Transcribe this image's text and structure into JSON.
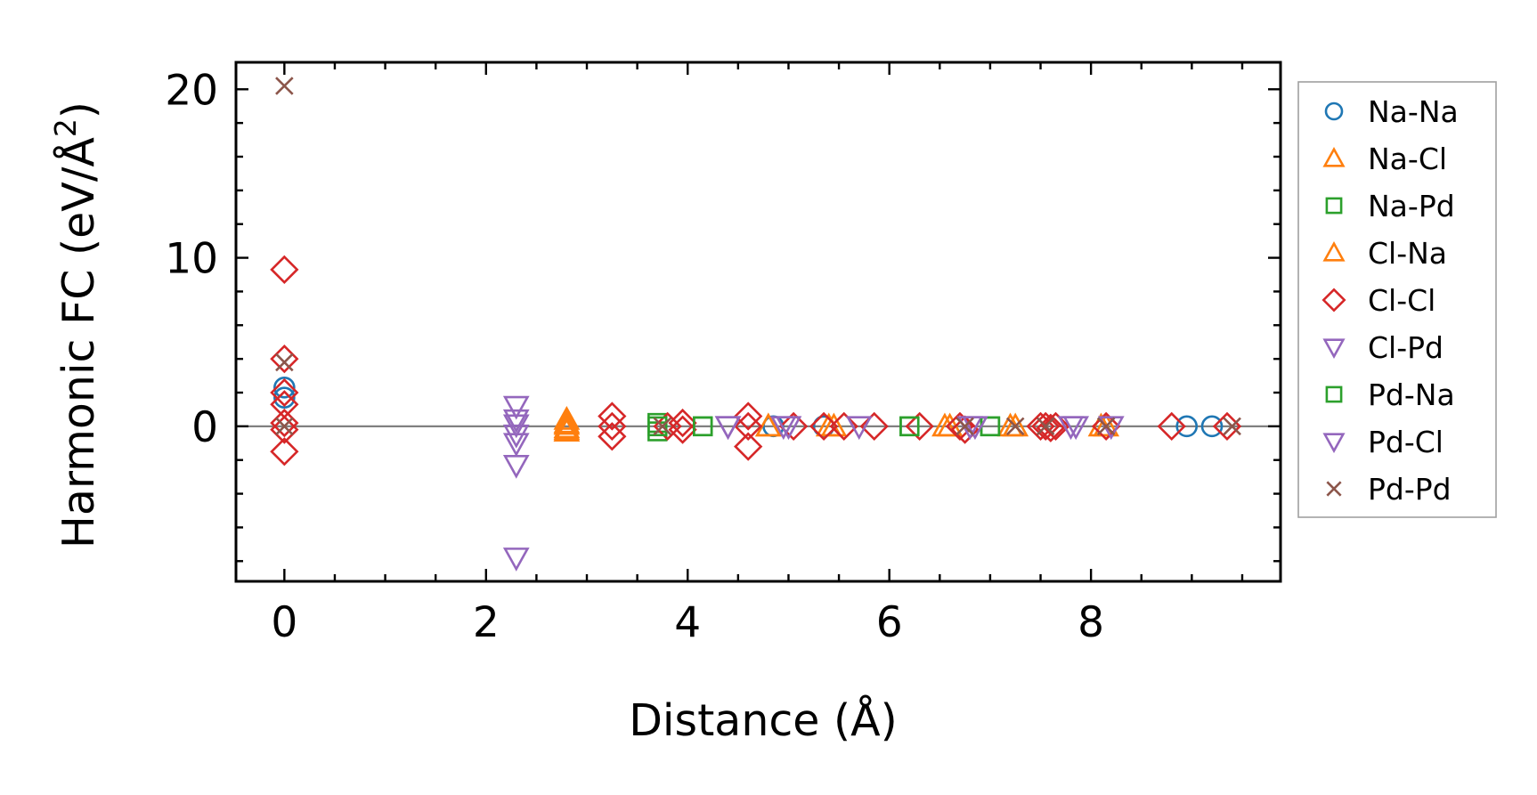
{
  "chart_data": {
    "type": "scatter",
    "title": "",
    "xlabel": "Distance (Å)",
    "ylabel": "Harmonic FC (eV/Å²)",
    "ylabel_base": "Harmonic FC (eV/Å",
    "ylabel_sup": "2",
    "ylabel_end": ")",
    "xlim": [
      -0.48,
      9.88
    ],
    "ylim": [
      -9.2,
      21.6
    ],
    "xticks": [
      0,
      2,
      4,
      6,
      8
    ],
    "xtick_labels": [
      "0",
      "2",
      "4",
      "6",
      "8"
    ],
    "yticks": [
      0,
      10,
      20
    ],
    "ytick_labels": [
      "0",
      "10",
      "20"
    ],
    "x_minor_step": 0.5,
    "y_minor_step": 2,
    "zero_line": true,
    "grid": false,
    "legend_position": "outside-right",
    "series": [
      {
        "name": "Na-Na",
        "marker": "circle",
        "color": "#1f77b4",
        "points": [
          [
            0,
            2.3
          ],
          [
            0,
            1.7
          ],
          [
            4.85,
            0
          ],
          [
            5.35,
            0
          ],
          [
            8.95,
            0
          ],
          [
            9.2,
            0
          ]
        ]
      },
      {
        "name": "Na-Cl",
        "marker": "triangle-up",
        "color": "#ff7f0e",
        "points": [
          [
            2.8,
            0.4
          ],
          [
            2.8,
            0.1
          ],
          [
            2.8,
            -0.1
          ],
          [
            2.8,
            -0.3
          ],
          [
            4.8,
            0
          ],
          [
            5.4,
            0
          ],
          [
            6.55,
            0
          ],
          [
            7.2,
            0
          ],
          [
            8.1,
            0
          ]
        ]
      },
      {
        "name": "Na-Pd",
        "marker": "square",
        "color": "#2ca02c",
        "points": [
          [
            3.7,
            0.2
          ],
          [
            3.7,
            -0.3
          ],
          [
            4.15,
            0
          ],
          [
            6.2,
            0
          ],
          [
            7.0,
            0
          ]
        ]
      },
      {
        "name": "Cl-Na",
        "marker": "triangle-up",
        "color": "#ff7f0e",
        "points": [
          [
            2.8,
            0.2
          ],
          [
            2.8,
            -0.2
          ],
          [
            4.8,
            0
          ],
          [
            5.45,
            0
          ],
          [
            6.6,
            0
          ],
          [
            7.25,
            0
          ],
          [
            8.15,
            0
          ]
        ]
      },
      {
        "name": "Cl-Cl",
        "marker": "diamond",
        "color": "#d62728",
        "points": [
          [
            0,
            9.3
          ],
          [
            0,
            4.0
          ],
          [
            0,
            2.0
          ],
          [
            0,
            1.3
          ],
          [
            0,
            0.2
          ],
          [
            0,
            -0.2
          ],
          [
            0,
            -1.5
          ],
          [
            3.25,
            0.6
          ],
          [
            3.25,
            0
          ],
          [
            3.25,
            -0.6
          ],
          [
            3.8,
            0
          ],
          [
            3.95,
            0.2
          ],
          [
            3.95,
            -0.2
          ],
          [
            4.6,
            0.6
          ],
          [
            4.6,
            0
          ],
          [
            4.6,
            -1.2
          ],
          [
            5.05,
            0
          ],
          [
            5.35,
            0
          ],
          [
            5.55,
            0
          ],
          [
            5.85,
            0
          ],
          [
            6.3,
            0
          ],
          [
            6.7,
            0
          ],
          [
            6.75,
            -0.2
          ],
          [
            7.5,
            0
          ],
          [
            7.55,
            0
          ],
          [
            7.6,
            -0.1
          ],
          [
            7.65,
            0
          ],
          [
            8.15,
            0
          ],
          [
            8.8,
            0
          ],
          [
            9.35,
            0
          ]
        ]
      },
      {
        "name": "Cl-Pd",
        "marker": "triangle-down",
        "color": "#9467bd",
        "points": [
          [
            2.3,
            1.2
          ],
          [
            2.3,
            0.1
          ],
          [
            2.3,
            -1.0
          ],
          [
            2.3,
            -2.3
          ],
          [
            2.3,
            -7.8
          ],
          [
            4.4,
            0
          ],
          [
            4.95,
            0
          ],
          [
            5.7,
            0
          ],
          [
            6.8,
            0
          ],
          [
            7.8,
            0
          ],
          [
            8.2,
            0
          ]
        ]
      },
      {
        "name": "Pd-Na",
        "marker": "square",
        "color": "#2ca02c",
        "points": [
          [
            3.7,
            0
          ],
          [
            4.15,
            0
          ],
          [
            6.2,
            0
          ],
          [
            7.0,
            0
          ]
        ]
      },
      {
        "name": "Pd-Cl",
        "marker": "triangle-down",
        "color": "#9467bd",
        "points": [
          [
            2.3,
            0.4
          ],
          [
            2.3,
            -0.5
          ],
          [
            4.4,
            0
          ],
          [
            5.0,
            0
          ],
          [
            6.85,
            0
          ],
          [
            7.85,
            0
          ]
        ]
      },
      {
        "name": "Pd-Pd",
        "marker": "x",
        "color": "#8c564b",
        "points": [
          [
            0,
            20.2
          ],
          [
            0,
            3.8
          ],
          [
            0,
            0
          ],
          [
            3.75,
            0
          ],
          [
            6.75,
            0
          ],
          [
            7.25,
            0
          ],
          [
            7.55,
            0
          ],
          [
            8.15,
            0
          ],
          [
            9.4,
            0
          ]
        ]
      }
    ]
  }
}
